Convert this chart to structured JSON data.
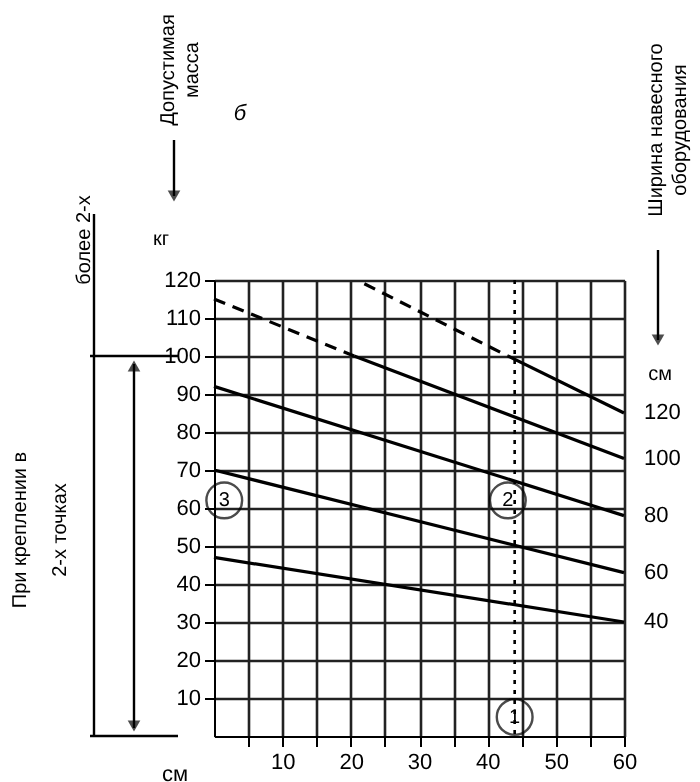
{
  "chart_data": {
    "type": "line",
    "xlabel": "см",
    "ylabel": "кг",
    "xlim": [
      0,
      60
    ],
    "ylim": [
      0,
      120
    ],
    "xticks": [
      {
        "value": 5,
        "label": null
      },
      10,
      {
        "value": 15,
        "label": null
      },
      20,
      {
        "value": 25,
        "label": null
      },
      30,
      {
        "value": 35,
        "label": null
      },
      40,
      {
        "value": 45,
        "label": null
      },
      50,
      {
        "value": 55,
        "label": null
      },
      60
    ],
    "yticks": [
      10,
      20,
      30,
      40,
      50,
      60,
      70,
      80,
      90,
      100,
      110,
      120
    ],
    "grid": true,
    "marker": "none",
    "series": [
      {
        "name": "120",
        "color": "#000000",
        "line_style": "solid",
        "x": [
          43,
          60
        ],
        "values": [
          100,
          85
        ]
      },
      {
        "name": "120",
        "color": "#000000",
        "line_style": "dashed",
        "x": [
          22,
          43
        ],
        "values": [
          119,
          100
        ]
      },
      {
        "name": "100",
        "color": "#000000",
        "line_style": "solid",
        "x": [
          20.5,
          60
        ],
        "values": [
          100,
          73
        ]
      },
      {
        "name": "100",
        "color": "#000000",
        "line_style": "dashed",
        "x": [
          0,
          20.5
        ],
        "values": [
          115,
          100
        ]
      },
      {
        "name": "80",
        "color": "#000000",
        "line_style": "solid",
        "x": [
          0,
          60
        ],
        "values": [
          92,
          58
        ]
      },
      {
        "name": "60",
        "color": "#000000",
        "line_style": "solid",
        "x": [
          0,
          60
        ],
        "values": [
          70,
          43
        ]
      },
      {
        "name": "40",
        "color": "#000000",
        "line_style": "solid",
        "x": [
          0,
          60
        ],
        "values": [
          47,
          30
        ]
      }
    ],
    "ref_lines": [
      {
        "axis": "x",
        "value": 44,
        "line_style": "dotted",
        "color": "#000000"
      }
    ],
    "annotations": [
      "б",
      "Допустимая\nмасса",
      "более 2-х",
      "При креплении в",
      "2-х точках",
      "Ширина навесного\nоборудования",
      "см",
      {
        "text": "1",
        "x": 44,
        "y": 5
      },
      {
        "text": "2",
        "x": 43,
        "y": 62
      },
      {
        "text": "3",
        "x": 1.5,
        "y": 62
      }
    ]
  }
}
